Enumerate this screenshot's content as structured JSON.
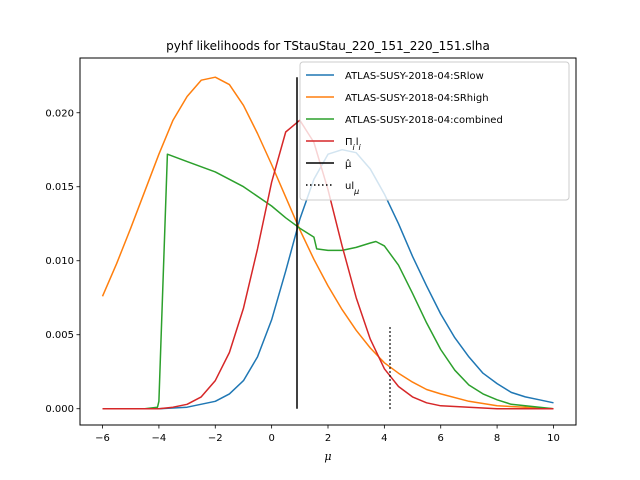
{
  "chart_data": {
    "type": "line",
    "title": "pyhf likelihoods for TStauStau_220_151_220_151.slha",
    "xlabel": "μ",
    "ylabel": "",
    "xlim": [
      -6.8,
      10.8
    ],
    "ylim": [
      -0.0011,
      0.0237
    ],
    "xticks": [
      -6,
      -4,
      -2,
      0,
      2,
      4,
      6,
      8,
      10
    ],
    "xtick_labels": [
      "−6",
      "−4",
      "−2",
      "0",
      "2",
      "4",
      "6",
      "8",
      "10"
    ],
    "yticks": [
      0.0,
      0.005,
      0.01,
      0.015,
      0.02
    ],
    "ytick_labels": [
      "0.000",
      "0.005",
      "0.010",
      "0.015",
      "0.020"
    ],
    "grid": false,
    "legend_position": "upper right",
    "series": [
      {
        "name": "ATLAS-SUSY-2018-04:SRlow",
        "color": "#1f77b4",
        "x": [
          -6.0,
          -4.0,
          -3.0,
          -2.0,
          -1.5,
          -1.0,
          -0.5,
          0.0,
          0.5,
          1.0,
          1.5,
          2.0,
          2.5,
          3.0,
          3.5,
          4.0,
          4.5,
          5.0,
          5.5,
          6.0,
          6.5,
          7.0,
          7.5,
          8.0,
          8.5,
          9.0,
          9.5,
          10.0
        ],
        "y": [
          0.0,
          0.0,
          0.0001,
          0.0005,
          0.001,
          0.0019,
          0.0035,
          0.006,
          0.0093,
          0.0128,
          0.0155,
          0.0172,
          0.0175,
          0.0173,
          0.0162,
          0.0145,
          0.0125,
          0.0103,
          0.0083,
          0.0064,
          0.0048,
          0.0035,
          0.0024,
          0.0017,
          0.0011,
          0.0008,
          0.0006,
          0.0004
        ]
      },
      {
        "name": "ATLAS-SUSY-2018-04:SRhigh",
        "color": "#ff7f0e",
        "x": [
          -6.0,
          -5.5,
          -5.0,
          -4.5,
          -4.0,
          -3.5,
          -3.0,
          -2.5,
          -2.0,
          -1.5,
          -1.0,
          -0.5,
          0.0,
          0.5,
          1.0,
          1.5,
          2.0,
          2.5,
          3.0,
          3.5,
          4.0,
          4.5,
          5.0,
          5.5,
          6.0,
          7.0,
          8.0,
          9.0,
          10.0
        ],
        "y": [
          0.0076,
          0.0098,
          0.0122,
          0.0147,
          0.0172,
          0.0195,
          0.0211,
          0.0222,
          0.0224,
          0.0219,
          0.0205,
          0.0186,
          0.0165,
          0.0143,
          0.0121,
          0.0101,
          0.0083,
          0.0067,
          0.0053,
          0.0041,
          0.0031,
          0.0024,
          0.0018,
          0.0013,
          0.001,
          0.0005,
          0.0002,
          0.0001,
          0.0
        ]
      },
      {
        "name": "ATLAS-SUSY-2018-04:combined",
        "color": "#2ca02c",
        "x": [
          -6.0,
          -4.5,
          -4.05,
          -4.0,
          -3.7,
          -3.0,
          -2.0,
          -1.0,
          0.0,
          0.5,
          1.0,
          1.5,
          1.6,
          2.0,
          2.5,
          3.0,
          3.5,
          3.7,
          4.0,
          4.5,
          5.0,
          5.5,
          6.0,
          6.5,
          7.0,
          7.5,
          8.0,
          8.5,
          9.0,
          10.0
        ],
        "y": [
          0.0,
          0.0,
          0.0001,
          0.0005,
          0.0172,
          0.0167,
          0.016,
          0.015,
          0.0137,
          0.0129,
          0.0122,
          0.0116,
          0.0108,
          0.0107,
          0.0107,
          0.0109,
          0.0112,
          0.0113,
          0.011,
          0.0097,
          0.0078,
          0.0058,
          0.004,
          0.0026,
          0.0016,
          0.001,
          0.0006,
          0.0003,
          0.0002,
          0.0
        ]
      },
      {
        "name": "Π_i l_i",
        "color": "#d62728",
        "x": [
          -6.0,
          -4.0,
          -3.5,
          -3.0,
          -2.5,
          -2.0,
          -1.5,
          -1.0,
          -0.5,
          0.0,
          0.5,
          1.0,
          1.5,
          2.0,
          2.5,
          3.0,
          3.5,
          4.0,
          4.5,
          5.0,
          5.5,
          6.0,
          7.0,
          8.0,
          9.0,
          10.0
        ],
        "y": [
          0.0,
          0.0,
          0.0001,
          0.0003,
          0.0008,
          0.0019,
          0.0038,
          0.0068,
          0.0108,
          0.0153,
          0.0187,
          0.0195,
          0.018,
          0.0148,
          0.011,
          0.0075,
          0.0047,
          0.0027,
          0.0015,
          0.0008,
          0.0004,
          0.0002,
          0.0001,
          0.0,
          0.0,
          0.0
        ]
      }
    ],
    "vlines": [
      {
        "name": "μ̂",
        "x": 0.9,
        "ymin": 0.0,
        "ymax": 0.0224,
        "color": "#000000",
        "style": "solid"
      },
      {
        "name": "ul_μ",
        "x": 4.2,
        "ymin": 0.0,
        "ymax": 0.0056,
        "color": "#000000",
        "style": "dotted"
      }
    ]
  }
}
